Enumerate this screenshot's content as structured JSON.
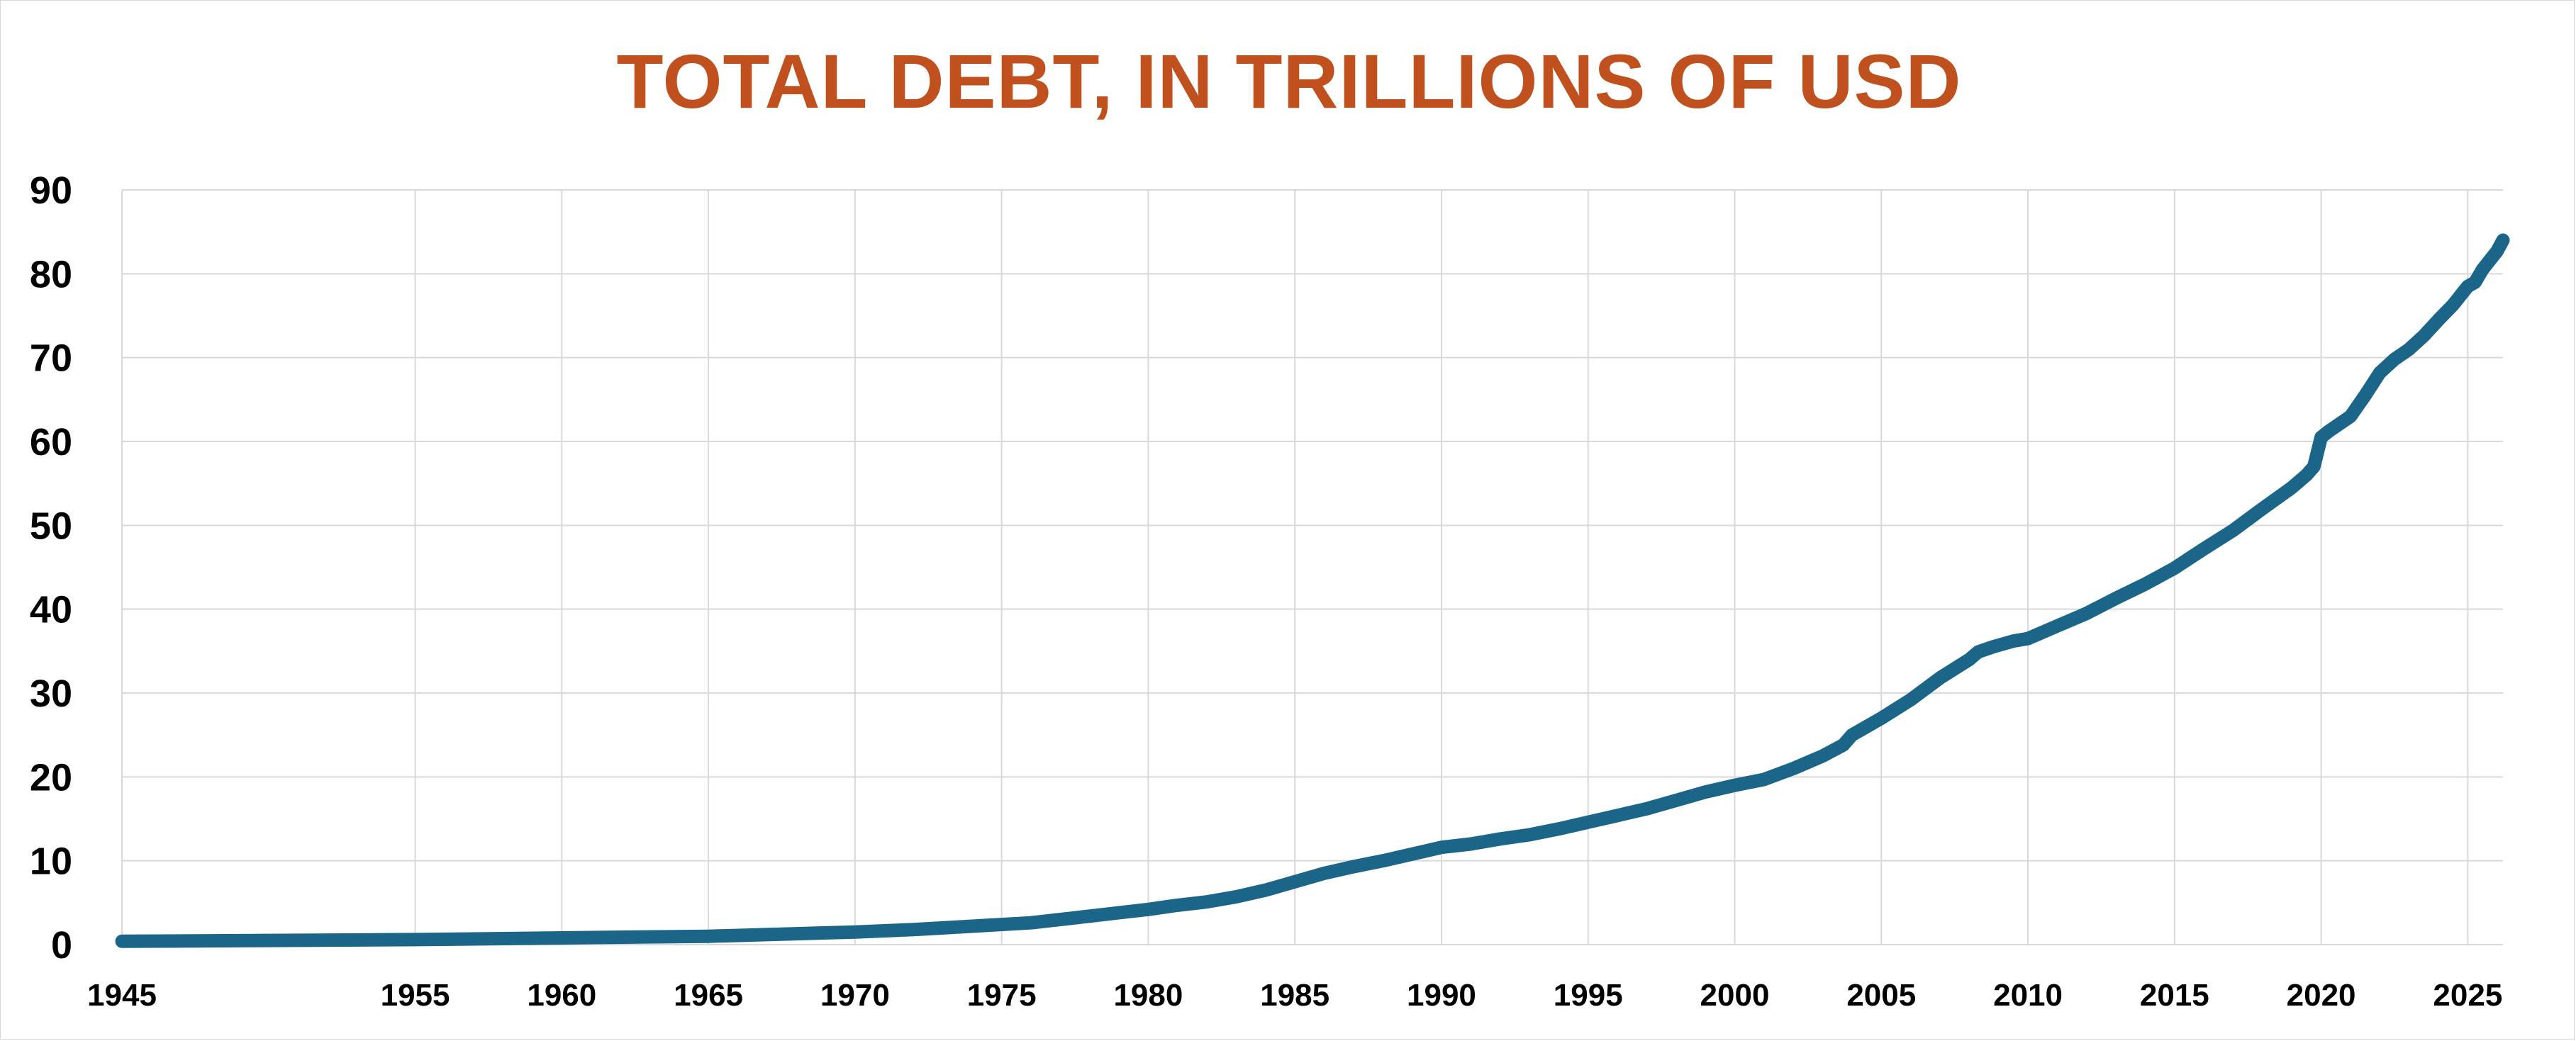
{
  "chart_data": {
    "type": "line",
    "title": "TOTAL DEBT, IN TRILLIONS OF USD",
    "xlabel": "",
    "ylabel": "",
    "xlim": [
      1945,
      2026.2
    ],
    "ylim": [
      0,
      90
    ],
    "grid": true,
    "legend": "none",
    "colors": {
      "title": "#C0511F",
      "series": "#1B6688",
      "grid": "#D9D9D9",
      "ticks": "#000000"
    },
    "y_ticks": [
      {
        "value": 0,
        "label": "0"
      },
      {
        "value": 10,
        "label": "10"
      },
      {
        "value": 20,
        "label": "20"
      },
      {
        "value": 30,
        "label": "30"
      },
      {
        "value": 40,
        "label": "40"
      },
      {
        "value": 50,
        "label": "50"
      },
      {
        "value": 60,
        "label": "60"
      },
      {
        "value": 70,
        "label": "70"
      },
      {
        "value": 80,
        "label": "80"
      },
      {
        "value": 90,
        "label": "90"
      }
    ],
    "x_ticks": [
      {
        "value": 1945,
        "label": "1945"
      },
      {
        "value": 1955,
        "label": "1955"
      },
      {
        "value": 1960,
        "label": "1960"
      },
      {
        "value": 1965,
        "label": "1965"
      },
      {
        "value": 1970,
        "label": "1970"
      },
      {
        "value": 1975,
        "label": "1975"
      },
      {
        "value": 1980,
        "label": "1980"
      },
      {
        "value": 1985,
        "label": "1985"
      },
      {
        "value": 1990,
        "label": "1990"
      },
      {
        "value": 1995,
        "label": "1995"
      },
      {
        "value": 2000,
        "label": "2000"
      },
      {
        "value": 2005,
        "label": "2005"
      },
      {
        "value": 2010,
        "label": "2010"
      },
      {
        "value": 2015,
        "label": "2015"
      },
      {
        "value": 2020,
        "label": "2020"
      },
      {
        "value": 2025,
        "label": "2025"
      }
    ],
    "series": [
      {
        "x": [
          1945,
          1950,
          1955,
          1960,
          1965,
          1968,
          1970,
          1972,
          1974,
          1976,
          1978,
          1979,
          1980,
          1981,
          1982,
          1983,
          1984,
          1985,
          1986,
          1987,
          1988,
          1989,
          1990,
          1991,
          1992,
          1993,
          1994,
          1995,
          1996,
          1997,
          1998,
          1999,
          2000,
          2001,
          2002,
          2003,
          2003.7,
          2004,
          2005,
          2006,
          2007,
          2008,
          2008.3,
          2008.8,
          2009.5,
          2010,
          2011,
          2012,
          2013,
          2014,
          2015,
          2016,
          2017,
          2018,
          2019,
          2019.5,
          2019.75,
          2020,
          2020.25,
          2021,
          2021.5,
          2022,
          2022.5,
          2023,
          2023.5,
          2024,
          2024.5,
          2025,
          2025.25,
          2025.5,
          2026,
          2026.2
        ],
        "values": [
          0.4,
          0.5,
          0.6,
          0.8,
          1.0,
          1.3,
          1.5,
          1.8,
          2.2,
          2.6,
          3.4,
          3.8,
          4.2,
          4.7,
          5.1,
          5.7,
          6.5,
          7.5,
          8.5,
          9.3,
          10.0,
          10.8,
          11.6,
          12.0,
          12.6,
          13.1,
          13.8,
          14.6,
          15.4,
          16.2,
          17.2,
          18.2,
          19.0,
          19.7,
          21.0,
          22.5,
          23.8,
          25.0,
          27.0,
          29.2,
          31.8,
          34.0,
          34.9,
          35.5,
          36.2,
          36.5,
          38.0,
          39.5,
          41.3,
          43.0,
          44.9,
          47.2,
          49.4,
          52.0,
          54.5,
          56.0,
          57.0,
          60.5,
          61.2,
          63.0,
          65.5,
          68.2,
          69.8,
          71.0,
          72.6,
          74.5,
          76.3,
          78.5,
          79.0,
          80.5,
          82.7,
          84.0
        ]
      }
    ]
  }
}
